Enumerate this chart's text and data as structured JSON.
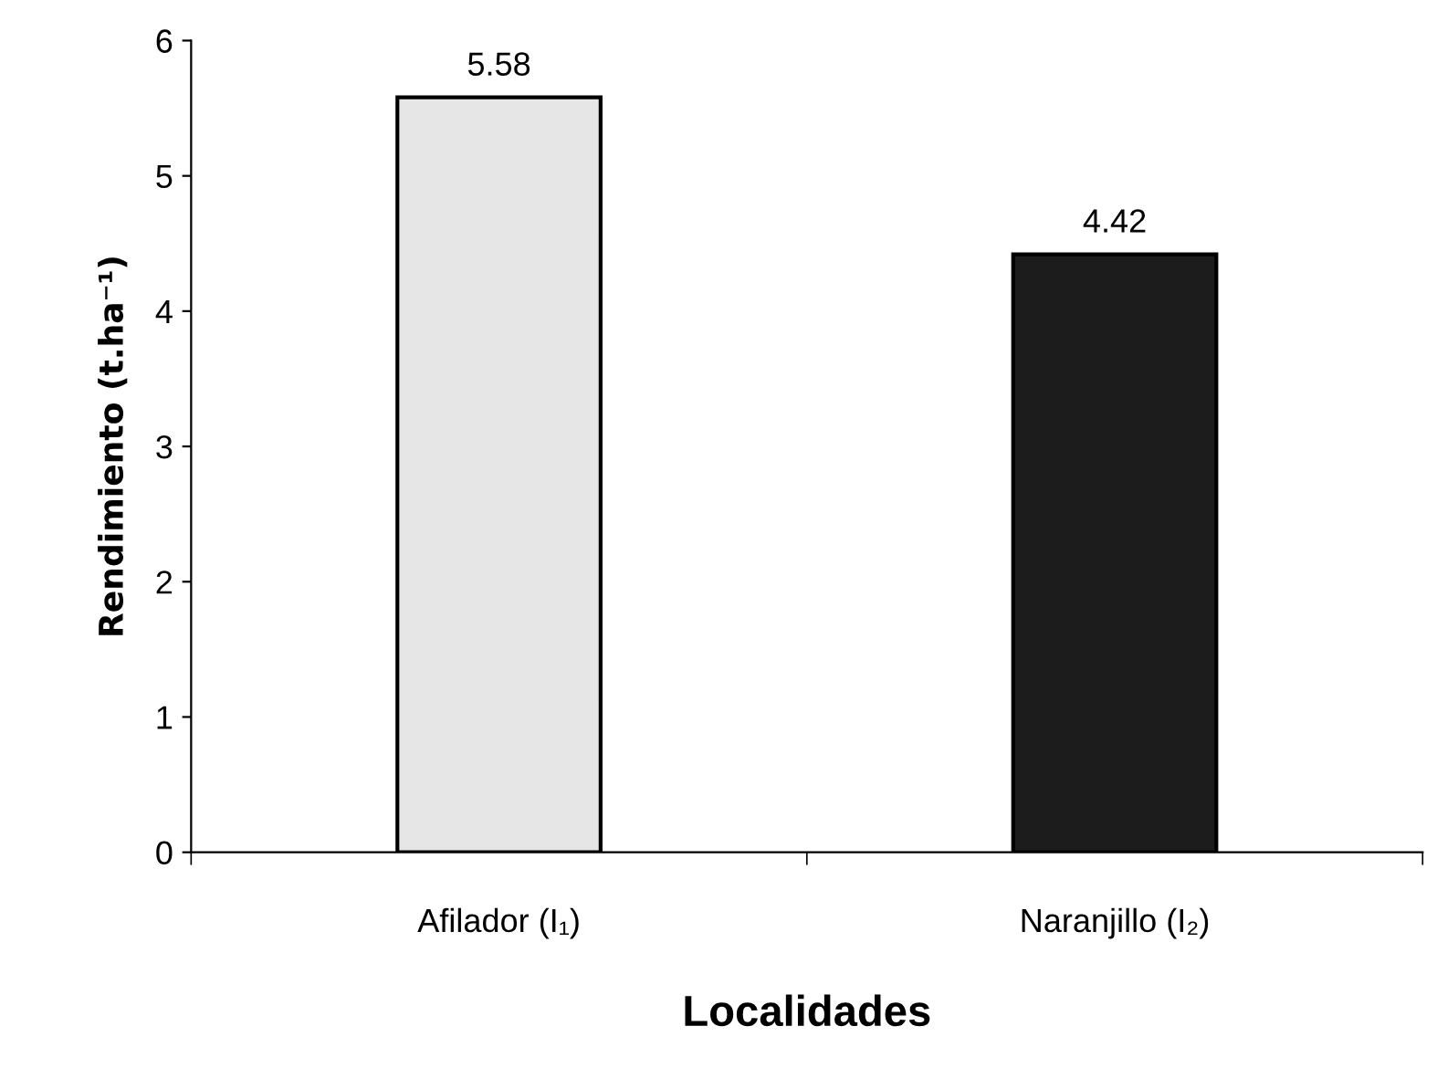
{
  "chart_data": {
    "type": "bar",
    "xlabel": "Localidades",
    "ylabel": "Rendimiento (t.ha⁻¹)",
    "categories": [
      "Afilador (I₁)",
      "Naranjillo (I₂)"
    ],
    "values": [
      5.58,
      4.42
    ],
    "colors": [
      "#e6e6e6",
      "#1c1c1c"
    ],
    "ylim": [
      0,
      6
    ],
    "yticks": [
      0,
      1,
      2,
      3,
      4,
      5,
      6
    ],
    "data_labels": true,
    "grid": false,
    "legend": false
  }
}
